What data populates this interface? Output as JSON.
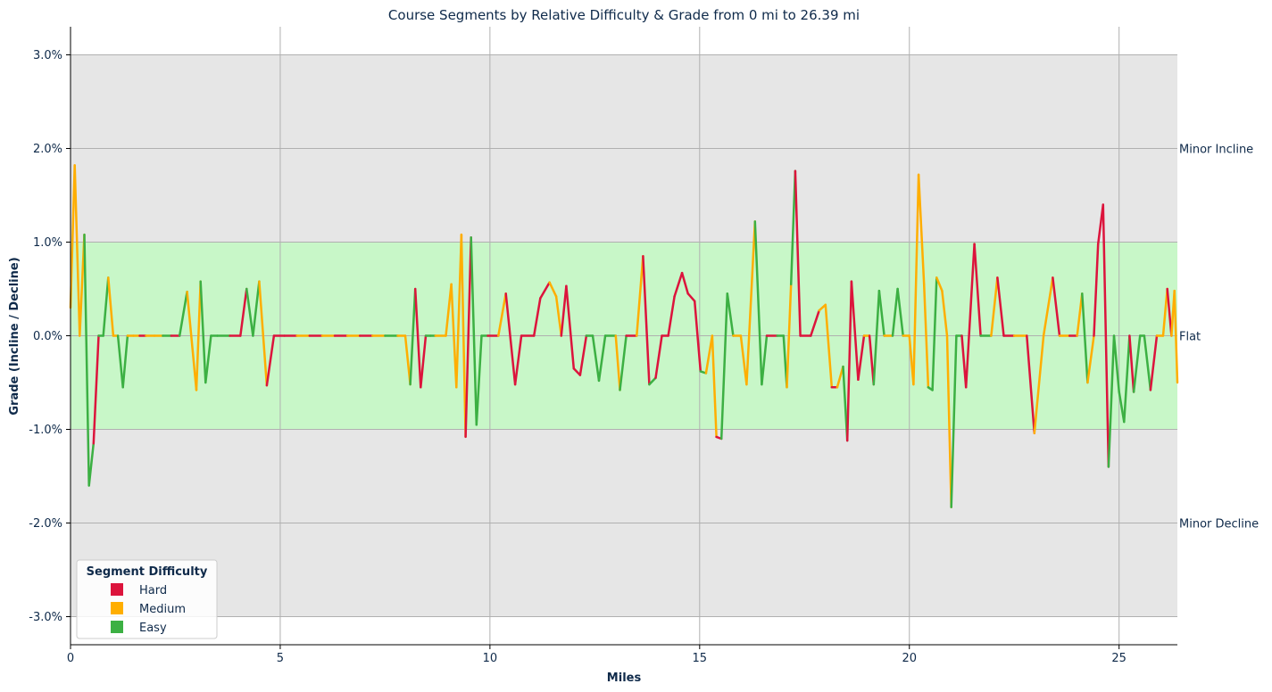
{
  "chart_data": {
    "type": "line",
    "title": "Course Segments by Relative Difficulty & Grade from 0 mi to 26.39 mi",
    "xlabel": "Miles",
    "ylabel": "Grade (Incline / Decline)",
    "xlim": [
      0,
      26.39
    ],
    "ylim": [
      -3.3,
      3.3
    ],
    "x_ticks": [
      0,
      5,
      10,
      15,
      20,
      25
    ],
    "y_ticks": [
      3.0,
      2.0,
      1.0,
      0.0,
      -1.0,
      -2.0,
      -3.0
    ],
    "y_tick_labels": [
      "3.0%",
      "2.0%",
      "1.0%",
      "0.0%",
      "-1.0%",
      "-2.0%",
      "-3.0%"
    ],
    "grid": true,
    "bands": [
      {
        "label": "",
        "y0": 1.0,
        "y1": 3.0,
        "color": "#e6e6e6"
      },
      {
        "label": "",
        "y0": -3.0,
        "y1": -1.0,
        "color": "#e6e6e6"
      },
      {
        "label": "",
        "y0": -1.0,
        "y1": 1.0,
        "color": "#c8f7c8"
      }
    ],
    "band_labels": [
      {
        "text": "Minor Incline",
        "y": 2.0
      },
      {
        "text": "Flat",
        "y": 0.0
      },
      {
        "text": "Minor Decline",
        "y": -2.0
      }
    ],
    "legend": {
      "title": "Segment Difficulty",
      "position": "bottom-left",
      "entries": [
        {
          "name": "Hard",
          "color": "#dc143c"
        },
        {
          "name": "Medium",
          "color": "#ffae00"
        },
        {
          "name": "Easy",
          "color": "#3cb043"
        }
      ]
    },
    "difficulty_colors": {
      "H": "#dc143c",
      "M": "#ffae00",
      "E": "#3cb043"
    },
    "points": [
      [
        0.0,
        0.3,
        "H"
      ],
      [
        0.1,
        1.82,
        "M"
      ],
      [
        0.22,
        0.0,
        "M"
      ],
      [
        0.33,
        1.08,
        "M"
      ],
      [
        0.44,
        -1.6,
        "E"
      ],
      [
        0.55,
        -1.15,
        "E"
      ],
      [
        0.67,
        0.0,
        "H"
      ],
      [
        0.78,
        0.0,
        "E"
      ],
      [
        0.9,
        0.62,
        "E"
      ],
      [
        1.02,
        0.0,
        "M"
      ],
      [
        1.13,
        0.0,
        "M"
      ],
      [
        1.25,
        -0.55,
        "E"
      ],
      [
        1.36,
        0.0,
        "E"
      ],
      [
        1.5,
        0.0,
        "M"
      ],
      [
        1.65,
        0.0,
        "M"
      ],
      [
        1.8,
        0.0,
        "H"
      ],
      [
        2.0,
        0.0,
        "M"
      ],
      [
        2.2,
        0.0,
        "M"
      ],
      [
        2.4,
        0.0,
        "E"
      ],
      [
        2.6,
        0.0,
        "H"
      ],
      [
        2.78,
        0.47,
        "E"
      ],
      [
        3.0,
        -0.58,
        "M"
      ],
      [
        3.1,
        0.58,
        "M"
      ],
      [
        3.22,
        -0.5,
        "E"
      ],
      [
        3.35,
        0.0,
        "E"
      ],
      [
        3.5,
        0.0,
        "E"
      ],
      [
        3.8,
        0.0,
        "E"
      ],
      [
        4.05,
        0.0,
        "H"
      ],
      [
        4.2,
        0.5,
        "H"
      ],
      [
        4.35,
        0.0,
        "E"
      ],
      [
        4.5,
        0.58,
        "E"
      ],
      [
        4.68,
        -0.53,
        "M"
      ],
      [
        4.85,
        0.0,
        "H"
      ],
      [
        5.1,
        0.0,
        "H"
      ],
      [
        5.4,
        0.0,
        "H"
      ],
      [
        5.7,
        0.0,
        "M"
      ],
      [
        6.0,
        0.0,
        "H"
      ],
      [
        6.3,
        0.0,
        "M"
      ],
      [
        6.6,
        0.0,
        "H"
      ],
      [
        6.9,
        0.0,
        "M"
      ],
      [
        7.2,
        0.0,
        "H"
      ],
      [
        7.5,
        0.0,
        "M"
      ],
      [
        7.8,
        0.0,
        "E"
      ],
      [
        7.98,
        0.0,
        "M"
      ],
      [
        8.1,
        -0.52,
        "M"
      ],
      [
        8.22,
        0.5,
        "E"
      ],
      [
        8.35,
        -0.55,
        "H"
      ],
      [
        8.47,
        0.0,
        "H"
      ],
      [
        8.58,
        0.0,
        "E"
      ],
      [
        8.7,
        0.0,
        "E"
      ],
      [
        8.95,
        0.0,
        "M"
      ],
      [
        9.08,
        0.55,
        "M"
      ],
      [
        9.2,
        -0.55,
        "M"
      ],
      [
        9.32,
        1.08,
        "M"
      ],
      [
        9.42,
        -1.08,
        "M"
      ],
      [
        9.55,
        1.05,
        "H"
      ],
      [
        9.68,
        -0.95,
        "E"
      ],
      [
        9.8,
        0.0,
        "E"
      ],
      [
        9.95,
        0.0,
        "E"
      ],
      [
        10.2,
        0.0,
        "H"
      ],
      [
        10.38,
        0.45,
        "M"
      ],
      [
        10.6,
        -0.52,
        "H"
      ],
      [
        10.75,
        0.0,
        "H"
      ],
      [
        11.05,
        0.0,
        "H"
      ],
      [
        11.2,
        0.4,
        "H"
      ],
      [
        11.42,
        0.57,
        "H"
      ],
      [
        11.58,
        0.42,
        "M"
      ],
      [
        11.7,
        0.0,
        "M"
      ],
      [
        11.82,
        0.53,
        "H"
      ],
      [
        12.0,
        -0.35,
        "H"
      ],
      [
        12.15,
        -0.42,
        "H"
      ],
      [
        12.3,
        0.0,
        "H"
      ],
      [
        12.45,
        0.0,
        "E"
      ],
      [
        12.6,
        -0.48,
        "E"
      ],
      [
        12.75,
        0.0,
        "E"
      ],
      [
        13.0,
        0.0,
        "E"
      ],
      [
        13.1,
        -0.58,
        "M"
      ],
      [
        13.25,
        0.0,
        "E"
      ],
      [
        13.5,
        0.0,
        "H"
      ],
      [
        13.65,
        0.85,
        "M"
      ],
      [
        13.8,
        -0.52,
        "H"
      ],
      [
        13.95,
        -0.45,
        "E"
      ],
      [
        14.1,
        0.0,
        "H"
      ],
      [
        14.25,
        0.0,
        "H"
      ],
      [
        14.4,
        0.42,
        "H"
      ],
      [
        14.58,
        0.67,
        "H"
      ],
      [
        14.72,
        0.45,
        "H"
      ],
      [
        14.88,
        0.37,
        "H"
      ],
      [
        15.02,
        -0.38,
        "H"
      ],
      [
        15.15,
        -0.4,
        "E"
      ],
      [
        15.3,
        0.0,
        "M"
      ],
      [
        15.4,
        -1.08,
        "M"
      ],
      [
        15.52,
        -1.1,
        "H"
      ],
      [
        15.66,
        0.45,
        "E"
      ],
      [
        15.8,
        0.0,
        "E"
      ],
      [
        15.98,
        0.0,
        "M"
      ],
      [
        16.12,
        -0.52,
        "M"
      ],
      [
        16.32,
        1.22,
        "M"
      ],
      [
        16.48,
        -0.52,
        "E"
      ],
      [
        16.6,
        0.0,
        "E"
      ],
      [
        16.85,
        0.0,
        "H"
      ],
      [
        17.0,
        0.0,
        "E"
      ],
      [
        17.08,
        -0.55,
        "E"
      ],
      [
        17.18,
        0.55,
        "M"
      ],
      [
        17.28,
        1.76,
        "E"
      ],
      [
        17.4,
        0.0,
        "H"
      ],
      [
        17.65,
        0.0,
        "H"
      ],
      [
        17.85,
        0.27,
        "H"
      ],
      [
        18.0,
        0.33,
        "M"
      ],
      [
        18.15,
        -0.55,
        "M"
      ],
      [
        18.28,
        -0.55,
        "H"
      ],
      [
        18.42,
        -0.33,
        "M"
      ],
      [
        18.52,
        -1.12,
        "E"
      ],
      [
        18.62,
        0.58,
        "H"
      ],
      [
        18.78,
        -0.47,
        "H"
      ],
      [
        18.92,
        0.0,
        "H"
      ],
      [
        19.05,
        0.0,
        "M"
      ],
      [
        19.15,
        -0.52,
        "H"
      ],
      [
        19.28,
        0.48,
        "E"
      ],
      [
        19.4,
        0.0,
        "E"
      ],
      [
        19.6,
        0.0,
        "M"
      ],
      [
        19.72,
        0.5,
        "E"
      ],
      [
        19.85,
        0.0,
        "E"
      ],
      [
        20.0,
        0.0,
        "M"
      ],
      [
        20.1,
        -0.52,
        "M"
      ],
      [
        20.22,
        1.72,
        "M"
      ],
      [
        20.35,
        0.55,
        "M"
      ],
      [
        20.45,
        -0.55,
        "M"
      ],
      [
        20.55,
        -0.58,
        "E"
      ],
      [
        20.65,
        0.62,
        "E"
      ],
      [
        20.78,
        0.48,
        "M"
      ],
      [
        20.9,
        0.0,
        "M"
      ],
      [
        21.0,
        -1.83,
        "M"
      ],
      [
        21.12,
        0.0,
        "E"
      ],
      [
        21.25,
        0.0,
        "E"
      ],
      [
        21.35,
        -0.55,
        "H"
      ],
      [
        21.55,
        0.98,
        "H"
      ],
      [
        21.7,
        0.0,
        "H"
      ],
      [
        21.95,
        0.0,
        "E"
      ],
      [
        22.1,
        0.62,
        "M"
      ],
      [
        22.25,
        0.0,
        "H"
      ],
      [
        22.5,
        0.0,
        "H"
      ],
      [
        22.8,
        0.0,
        "M"
      ],
      [
        22.98,
        -1.04,
        "H"
      ],
      [
        23.2,
        0.0,
        "M"
      ],
      [
        23.42,
        0.62,
        "M"
      ],
      [
        23.58,
        0.0,
        "H"
      ],
      [
        23.82,
        0.0,
        "M"
      ],
      [
        24.0,
        0.0,
        "H"
      ],
      [
        24.12,
        0.45,
        "M"
      ],
      [
        24.25,
        -0.5,
        "E"
      ],
      [
        24.4,
        0.0,
        "M"
      ],
      [
        24.5,
        0.98,
        "H"
      ],
      [
        24.62,
        1.4,
        "H"
      ],
      [
        24.75,
        -1.4,
        "H"
      ],
      [
        24.88,
        0.0,
        "E"
      ],
      [
        25.0,
        -0.6,
        "E"
      ],
      [
        25.12,
        -0.92,
        "E"
      ],
      [
        25.25,
        0.0,
        "E"
      ],
      [
        25.35,
        -0.6,
        "H"
      ],
      [
        25.5,
        0.0,
        "E"
      ],
      [
        25.6,
        0.0,
        "E"
      ],
      [
        25.75,
        -0.58,
        "E"
      ],
      [
        25.9,
        0.0,
        "H"
      ],
      [
        26.05,
        0.0,
        "M"
      ],
      [
        26.15,
        0.5,
        "M"
      ],
      [
        26.25,
        0.0,
        "H"
      ],
      [
        26.32,
        0.48,
        "M"
      ],
      [
        26.39,
        -0.5,
        "M"
      ]
    ]
  }
}
